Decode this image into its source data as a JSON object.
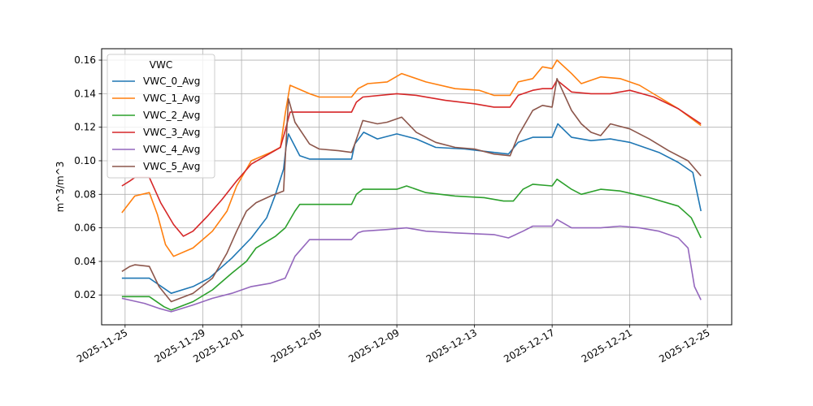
{
  "chart_data": {
    "type": "line",
    "title": "",
    "xlabel": "",
    "ylabel": "m^3/m^3",
    "x_tick_labels": [
      "2025-11-25",
      "2025-11-29",
      "2025-12-01",
      "2025-12-05",
      "2025-12-09",
      "2025-12-13",
      "2025-12-17",
      "2025-12-21",
      "2025-12-25"
    ],
    "x_ticks": [
      "2025-11-25",
      "2025-11-29",
      "2025-12-01",
      "2025-12-05",
      "2025-12-09",
      "2025-12-13",
      "2025-12-17",
      "2025-12-21",
      "2025-12-25"
    ],
    "xlim": [
      "2025-11-23T19:00",
      "2025-12-26T06:00"
    ],
    "y_tick_labels": [
      "0.02",
      "0.04",
      "0.06",
      "0.08",
      "0.10",
      "0.12",
      "0.14",
      "0.16"
    ],
    "y_ticks": [
      0.02,
      0.04,
      0.06,
      0.08,
      0.1,
      0.12,
      0.14,
      0.16
    ],
    "ylim": [
      0.0022,
      0.1668
    ],
    "grid": true,
    "legend": {
      "title": "VWC",
      "placement": "upper-left"
    },
    "series": [
      {
        "name": "VWC_0_Avg",
        "color": "#1f77b4",
        "points": [
          [
            "2025-11-24T20:00",
            0.03
          ],
          [
            "2025-11-26T06:00",
            0.03
          ],
          [
            "2025-11-27T09:00",
            0.021
          ],
          [
            "2025-11-28T12:00",
            0.025
          ],
          [
            "2025-11-29T08:00",
            0.03
          ],
          [
            "2025-11-30T12:00",
            0.042
          ],
          [
            "2025-12-01T12:00",
            0.054
          ],
          [
            "2025-12-02T07:00",
            0.066
          ],
          [
            "2025-12-02T18:00",
            0.08
          ],
          [
            "2025-12-03T04:00",
            0.095
          ],
          [
            "2025-12-03T07:00",
            0.108
          ],
          [
            "2025-12-03T10:00",
            0.116
          ],
          [
            "2025-12-04T00:00",
            0.103
          ],
          [
            "2025-12-04T12:00",
            0.101
          ],
          [
            "2025-12-06T16:00",
            0.101
          ],
          [
            "2025-12-06T20:00",
            0.11
          ],
          [
            "2025-12-07T07:00",
            0.117
          ],
          [
            "2025-12-08T00:00",
            0.113
          ],
          [
            "2025-12-09T00:00",
            0.116
          ],
          [
            "2025-12-10T00:00",
            0.113
          ],
          [
            "2025-12-11T00:00",
            0.108
          ],
          [
            "2025-12-12T12:00",
            0.107
          ],
          [
            "2025-12-14T00:00",
            0.105
          ],
          [
            "2025-12-14T18:00",
            0.104
          ],
          [
            "2025-12-15T06:00",
            0.111
          ],
          [
            "2025-12-16T00:00",
            0.114
          ],
          [
            "2025-12-17T00:00",
            0.114
          ],
          [
            "2025-12-17T07:00",
            0.122
          ],
          [
            "2025-12-18T00:00",
            0.114
          ],
          [
            "2025-12-19T00:00",
            0.112
          ],
          [
            "2025-12-20T00:00",
            0.113
          ],
          [
            "2025-12-21T00:00",
            0.111
          ],
          [
            "2025-12-22T12:00",
            0.105
          ],
          [
            "2025-12-23T12:00",
            0.099
          ],
          [
            "2025-12-24T06:00",
            0.093
          ],
          [
            "2025-12-24T16:00",
            0.07
          ]
        ]
      },
      {
        "name": "VWC_1_Avg",
        "color": "#ff7f0e",
        "points": [
          [
            "2025-11-24T20:00",
            0.069
          ],
          [
            "2025-11-25T12:00",
            0.079
          ],
          [
            "2025-11-26T06:00",
            0.081
          ],
          [
            "2025-11-26T16:00",
            0.068
          ],
          [
            "2025-11-27T02:00",
            0.05
          ],
          [
            "2025-11-27T12:00",
            0.043
          ],
          [
            "2025-11-28T12:00",
            0.048
          ],
          [
            "2025-11-29T12:00",
            0.058
          ],
          [
            "2025-11-30T06:00",
            0.07
          ],
          [
            "2025-11-30T18:00",
            0.085
          ],
          [
            "2025-12-01T12:00",
            0.1
          ],
          [
            "2025-12-02T12:00",
            0.105
          ],
          [
            "2025-12-03T00:00",
            0.108
          ],
          [
            "2025-12-03T06:00",
            0.128
          ],
          [
            "2025-12-03T12:00",
            0.145
          ],
          [
            "2025-12-04T12:00",
            0.14
          ],
          [
            "2025-12-05T00:00",
            0.138
          ],
          [
            "2025-12-06T16:00",
            0.138
          ],
          [
            "2025-12-07T00:00",
            0.143
          ],
          [
            "2025-12-07T12:00",
            0.146
          ],
          [
            "2025-12-08T12:00",
            0.147
          ],
          [
            "2025-12-09T06:00",
            0.152
          ],
          [
            "2025-12-10T12:00",
            0.147
          ],
          [
            "2025-12-12T00:00",
            0.143
          ],
          [
            "2025-12-13T06:00",
            0.142
          ],
          [
            "2025-12-14T00:00",
            0.139
          ],
          [
            "2025-12-14T20:00",
            0.139
          ],
          [
            "2025-12-15T06:00",
            0.147
          ],
          [
            "2025-12-16T00:00",
            0.149
          ],
          [
            "2025-12-16T12:00",
            0.156
          ],
          [
            "2025-12-17T00:00",
            0.155
          ],
          [
            "2025-12-17T06:00",
            0.16
          ],
          [
            "2025-12-18T00:00",
            0.152
          ],
          [
            "2025-12-18T12:00",
            0.146
          ],
          [
            "2025-12-19T12:00",
            0.15
          ],
          [
            "2025-12-20T12:00",
            0.149
          ],
          [
            "2025-12-21T12:00",
            0.145
          ],
          [
            "2025-12-22T12:00",
            0.138
          ],
          [
            "2025-12-23T12:00",
            0.131
          ],
          [
            "2025-12-24T16:00",
            0.121
          ]
        ]
      },
      {
        "name": "VWC_2_Avg",
        "color": "#2ca02c",
        "points": [
          [
            "2025-11-24T20:00",
            0.019
          ],
          [
            "2025-11-26T06:00",
            0.019
          ],
          [
            "2025-11-27T00:00",
            0.013
          ],
          [
            "2025-11-27T09:00",
            0.011
          ],
          [
            "2025-11-28T12:00",
            0.016
          ],
          [
            "2025-11-29T12:00",
            0.023
          ],
          [
            "2025-11-30T12:00",
            0.033
          ],
          [
            "2025-12-01T06:00",
            0.04
          ],
          [
            "2025-12-01T18:00",
            0.048
          ],
          [
            "2025-12-02T18:00",
            0.055
          ],
          [
            "2025-12-03T06:00",
            0.06
          ],
          [
            "2025-12-03T18:00",
            0.07
          ],
          [
            "2025-12-04T00:00",
            0.074
          ],
          [
            "2025-12-06T16:00",
            0.074
          ],
          [
            "2025-12-06T22:00",
            0.08
          ],
          [
            "2025-12-07T06:00",
            0.083
          ],
          [
            "2025-12-09T00:00",
            0.083
          ],
          [
            "2025-12-09T12:00",
            0.085
          ],
          [
            "2025-12-10T12:00",
            0.081
          ],
          [
            "2025-12-12T00:00",
            0.079
          ],
          [
            "2025-12-13T12:00",
            0.078
          ],
          [
            "2025-12-14T12:00",
            0.076
          ],
          [
            "2025-12-15T00:00",
            0.076
          ],
          [
            "2025-12-15T12:00",
            0.083
          ],
          [
            "2025-12-16T00:00",
            0.086
          ],
          [
            "2025-12-17T00:00",
            0.085
          ],
          [
            "2025-12-17T06:00",
            0.089
          ],
          [
            "2025-12-18T00:00",
            0.083
          ],
          [
            "2025-12-18T12:00",
            0.08
          ],
          [
            "2025-12-19T12:00",
            0.083
          ],
          [
            "2025-12-20T12:00",
            0.082
          ],
          [
            "2025-12-22T00:00",
            0.078
          ],
          [
            "2025-12-23T12:00",
            0.073
          ],
          [
            "2025-12-24T04:00",
            0.066
          ],
          [
            "2025-12-24T16:00",
            0.054
          ]
        ]
      },
      {
        "name": "VWC_3_Avg",
        "color": "#d62728",
        "points": [
          [
            "2025-11-24T20:00",
            0.085
          ],
          [
            "2025-11-25T06:00",
            0.088
          ],
          [
            "2025-11-25T12:00",
            0.09
          ],
          [
            "2025-11-26T06:00",
            0.09
          ],
          [
            "2025-11-26T20:00",
            0.075
          ],
          [
            "2025-11-27T12:00",
            0.062
          ],
          [
            "2025-11-28T00:00",
            0.055
          ],
          [
            "2025-11-28T12:00",
            0.058
          ],
          [
            "2025-11-29T06:00",
            0.067
          ],
          [
            "2025-11-30T00:00",
            0.077
          ],
          [
            "2025-11-30T18:00",
            0.088
          ],
          [
            "2025-12-01T12:00",
            0.098
          ],
          [
            "2025-12-02T06:00",
            0.103
          ],
          [
            "2025-12-03T00:00",
            0.108
          ],
          [
            "2025-12-03T06:00",
            0.118
          ],
          [
            "2025-12-03T12:00",
            0.129
          ],
          [
            "2025-12-06T16:00",
            0.129
          ],
          [
            "2025-12-06T22:00",
            0.135
          ],
          [
            "2025-12-07T06:00",
            0.138
          ],
          [
            "2025-12-09T00:00",
            0.14
          ],
          [
            "2025-12-10T00:00",
            0.139
          ],
          [
            "2025-12-11T12:00",
            0.136
          ],
          [
            "2025-12-13T00:00",
            0.134
          ],
          [
            "2025-12-14T00:00",
            0.132
          ],
          [
            "2025-12-14T20:00",
            0.132
          ],
          [
            "2025-12-15T06:00",
            0.139
          ],
          [
            "2025-12-16T00:00",
            0.142
          ],
          [
            "2025-12-16T12:00",
            0.143
          ],
          [
            "2025-12-17T00:00",
            0.143
          ],
          [
            "2025-12-17T06:00",
            0.148
          ],
          [
            "2025-12-18T00:00",
            0.141
          ],
          [
            "2025-12-19T00:00",
            0.14
          ],
          [
            "2025-12-20T00:00",
            0.14
          ],
          [
            "2025-12-21T00:00",
            0.142
          ],
          [
            "2025-12-22T06:00",
            0.138
          ],
          [
            "2025-12-23T12:00",
            0.131
          ],
          [
            "2025-12-24T16:00",
            0.122
          ]
        ]
      },
      {
        "name": "VWC_4_Avg",
        "color": "#9467bd",
        "points": [
          [
            "2025-11-24T20:00",
            0.018
          ],
          [
            "2025-11-26T00:00",
            0.015
          ],
          [
            "2025-11-26T18:00",
            0.012
          ],
          [
            "2025-11-27T09:00",
            0.01
          ],
          [
            "2025-11-28T12:00",
            0.014
          ],
          [
            "2025-11-29T12:00",
            0.018
          ],
          [
            "2025-11-30T12:00",
            0.021
          ],
          [
            "2025-12-01T12:00",
            0.025
          ],
          [
            "2025-12-02T12:00",
            0.027
          ],
          [
            "2025-12-03T06:00",
            0.03
          ],
          [
            "2025-12-03T18:00",
            0.043
          ],
          [
            "2025-12-04T12:00",
            0.053
          ],
          [
            "2025-12-06T16:00",
            0.053
          ],
          [
            "2025-12-07T00:00",
            0.057
          ],
          [
            "2025-12-07T06:00",
            0.058
          ],
          [
            "2025-12-08T12:00",
            0.059
          ],
          [
            "2025-12-09T12:00",
            0.06
          ],
          [
            "2025-12-10T12:00",
            0.058
          ],
          [
            "2025-12-12T00:00",
            0.057
          ],
          [
            "2025-12-14T00:00",
            0.056
          ],
          [
            "2025-12-14T18:00",
            0.054
          ],
          [
            "2025-12-15T12:00",
            0.058
          ],
          [
            "2025-12-16T00:00",
            0.061
          ],
          [
            "2025-12-17T00:00",
            0.061
          ],
          [
            "2025-12-17T06:00",
            0.065
          ],
          [
            "2025-12-18T00:00",
            0.06
          ],
          [
            "2025-12-19T12:00",
            0.06
          ],
          [
            "2025-12-20T12:00",
            0.061
          ],
          [
            "2025-12-21T12:00",
            0.06
          ],
          [
            "2025-12-22T12:00",
            0.058
          ],
          [
            "2025-12-23T12:00",
            0.054
          ],
          [
            "2025-12-24T00:00",
            0.048
          ],
          [
            "2025-12-24T08:00",
            0.025
          ],
          [
            "2025-12-24T16:00",
            0.017
          ]
        ]
      },
      {
        "name": "VWC_5_Avg",
        "color": "#8c564b",
        "points": [
          [
            "2025-11-24T20:00",
            0.034
          ],
          [
            "2025-11-25T06:00",
            0.037
          ],
          [
            "2025-11-25T12:00",
            0.038
          ],
          [
            "2025-11-26T06:00",
            0.037
          ],
          [
            "2025-11-26T18:00",
            0.025
          ],
          [
            "2025-11-27T09:00",
            0.016
          ],
          [
            "2025-11-28T12:00",
            0.021
          ],
          [
            "2025-11-29T12:00",
            0.03
          ],
          [
            "2025-11-30T06:00",
            0.045
          ],
          [
            "2025-11-30T18:00",
            0.058
          ],
          [
            "2025-12-01T06:00",
            0.07
          ],
          [
            "2025-12-01T18:00",
            0.075
          ],
          [
            "2025-12-02T12:00",
            0.079
          ],
          [
            "2025-12-03T04:00",
            0.082
          ],
          [
            "2025-12-03T07:00",
            0.11
          ],
          [
            "2025-12-03T10:00",
            0.137
          ],
          [
            "2025-12-03T18:00",
            0.123
          ],
          [
            "2025-12-04T12:00",
            0.11
          ],
          [
            "2025-12-05T00:00",
            0.107
          ],
          [
            "2025-12-06T00:00",
            0.106
          ],
          [
            "2025-12-06T16:00",
            0.105
          ],
          [
            "2025-12-06T20:00",
            0.11
          ],
          [
            "2025-12-07T06:00",
            0.124
          ],
          [
            "2025-12-08T00:00",
            0.122
          ],
          [
            "2025-12-08T12:00",
            0.123
          ],
          [
            "2025-12-09T06:00",
            0.126
          ],
          [
            "2025-12-10T00:00",
            0.117
          ],
          [
            "2025-12-11T00:00",
            0.111
          ],
          [
            "2025-12-12T00:00",
            0.108
          ],
          [
            "2025-12-13T00:00",
            0.107
          ],
          [
            "2025-12-14T00:00",
            0.104
          ],
          [
            "2025-12-14T20:00",
            0.103
          ],
          [
            "2025-12-15T06:00",
            0.115
          ],
          [
            "2025-12-16T00:00",
            0.13
          ],
          [
            "2025-12-16T12:00",
            0.133
          ],
          [
            "2025-12-17T00:00",
            0.132
          ],
          [
            "2025-12-17T06:00",
            0.149
          ],
          [
            "2025-12-18T00:00",
            0.13
          ],
          [
            "2025-12-18T12:00",
            0.122
          ],
          [
            "2025-12-19T00:00",
            0.117
          ],
          [
            "2025-12-19T12:00",
            0.115
          ],
          [
            "2025-12-20T00:00",
            0.122
          ],
          [
            "2025-12-21T00:00",
            0.119
          ],
          [
            "2025-12-22T00:00",
            0.113
          ],
          [
            "2025-12-23T00:00",
            0.106
          ],
          [
            "2025-12-24T00:00",
            0.1
          ],
          [
            "2025-12-24T16:00",
            0.091
          ]
        ]
      }
    ]
  }
}
